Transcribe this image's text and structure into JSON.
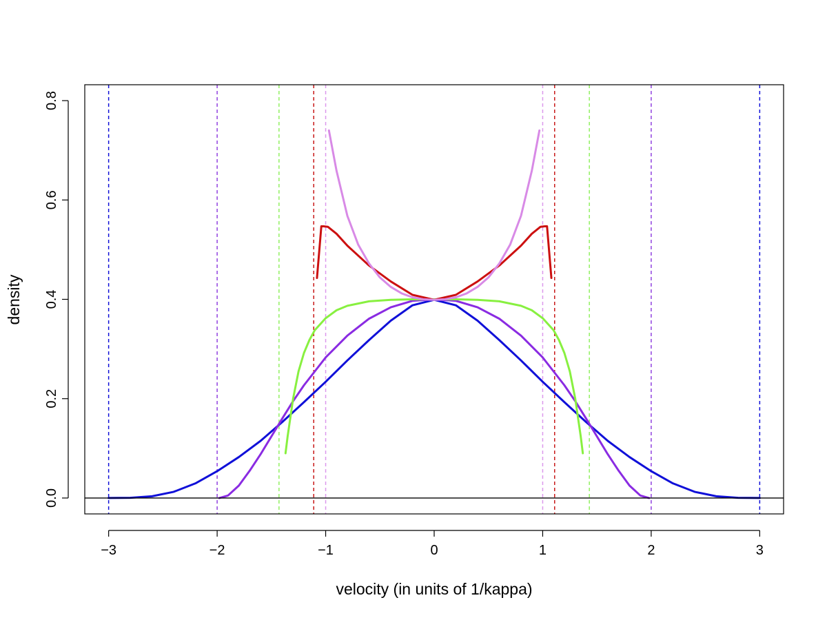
{
  "chart_data": {
    "type": "line",
    "xlabel": "velocity (in units of 1/kappa)",
    "ylabel": "density",
    "xlim": [
      -3.22,
      3.22
    ],
    "ylim": [
      -0.032,
      0.832
    ],
    "x_ticks": [
      -3,
      -2,
      -1,
      0,
      1,
      2,
      3
    ],
    "x_tick_labels": [
      "−3",
      "−2",
      "−1",
      "0",
      "1",
      "2",
      "3"
    ],
    "y_ticks": [
      0.0,
      0.2,
      0.4,
      0.6,
      0.8
    ],
    "y_tick_labels": [
      "0.0",
      "0.2",
      "0.4",
      "0.6",
      "0.8"
    ],
    "grid": false,
    "horizontal_lines": [
      0
    ],
    "vertical_lines": [
      {
        "x": -3.0,
        "color": "#1010d8"
      },
      {
        "x": 3.0,
        "color": "#1010d8"
      },
      {
        "x": -2.0,
        "color": "#9040e0"
      },
      {
        "x": 2.0,
        "color": "#9040e0"
      },
      {
        "x": -1.43,
        "color": "#90f060"
      },
      {
        "x": 1.43,
        "color": "#90f060"
      },
      {
        "x": -1.11,
        "color": "#c81818"
      },
      {
        "x": 1.11,
        "color": "#c81818"
      },
      {
        "x": -1.0,
        "color": "#dc98ec"
      },
      {
        "x": 1.0,
        "color": "#dc98ec"
      }
    ],
    "series": [
      {
        "color": "#1010d8",
        "x": [
          -3.0,
          -2.8,
          -2.6,
          -2.4,
          -2.2,
          -2.0,
          -1.8,
          -1.6,
          -1.4,
          -1.2,
          -1.0,
          -0.8,
          -0.6,
          -0.4,
          -0.2,
          0.0,
          0.2,
          0.4,
          0.6,
          0.8,
          1.0,
          1.2,
          1.4,
          1.6,
          1.8,
          2.0,
          2.2,
          2.4,
          2.6,
          2.8,
          3.0
        ],
        "y": [
          0.0,
          0.0004,
          0.0035,
          0.0125,
          0.0295,
          0.054,
          0.0825,
          0.115,
          0.153,
          0.193,
          0.234,
          0.277,
          0.318,
          0.357,
          0.388,
          0.399,
          0.388,
          0.357,
          0.318,
          0.277,
          0.234,
          0.193,
          0.153,
          0.115,
          0.0825,
          0.054,
          0.0295,
          0.0125,
          0.0035,
          0.0004,
          0.0
        ]
      },
      {
        "color": "#8a2be2",
        "x": [
          -1.98,
          -1.9,
          -1.8,
          -1.7,
          -1.6,
          -1.5,
          -1.4,
          -1.3,
          -1.2,
          -1.0,
          -0.8,
          -0.6,
          -0.4,
          -0.2,
          0.0,
          0.2,
          0.4,
          0.6,
          0.8,
          1.0,
          1.2,
          1.3,
          1.4,
          1.5,
          1.6,
          1.7,
          1.8,
          1.9,
          1.98
        ],
        "y": [
          0.0,
          0.005,
          0.025,
          0.055,
          0.088,
          0.124,
          0.16,
          0.195,
          0.227,
          0.283,
          0.327,
          0.361,
          0.384,
          0.397,
          0.4,
          0.397,
          0.384,
          0.361,
          0.327,
          0.283,
          0.227,
          0.195,
          0.16,
          0.124,
          0.088,
          0.055,
          0.025,
          0.005,
          0.0
        ]
      },
      {
        "color": "#88f040",
        "x": [
          -1.37,
          -1.35,
          -1.3,
          -1.25,
          -1.2,
          -1.15,
          -1.1,
          -1.0,
          -0.9,
          -0.8,
          -0.6,
          -0.4,
          -0.2,
          0.0,
          0.2,
          0.4,
          0.6,
          0.8,
          0.9,
          1.0,
          1.1,
          1.15,
          1.2,
          1.25,
          1.3,
          1.35,
          1.37
        ],
        "y": [
          0.09,
          0.125,
          0.2,
          0.255,
          0.292,
          0.318,
          0.338,
          0.362,
          0.378,
          0.387,
          0.396,
          0.399,
          0.4,
          0.4,
          0.4,
          0.399,
          0.396,
          0.387,
          0.378,
          0.362,
          0.338,
          0.318,
          0.292,
          0.255,
          0.2,
          0.125,
          0.09
        ]
      },
      {
        "color": "#cc1010",
        "x": [
          -1.08,
          -1.04,
          -1.02,
          -0.98,
          -0.9,
          -0.8,
          -0.6,
          -0.4,
          -0.2,
          0.0,
          0.2,
          0.4,
          0.6,
          0.8,
          0.9,
          0.98,
          1.02,
          1.04,
          1.08
        ],
        "y": [
          0.443,
          0.547,
          0.547,
          0.546,
          0.532,
          0.508,
          0.468,
          0.436,
          0.409,
          0.399,
          0.409,
          0.436,
          0.468,
          0.508,
          0.532,
          0.546,
          0.547,
          0.547,
          0.443
        ]
      },
      {
        "color": "#d88ae6",
        "x": [
          -0.97,
          -0.9,
          -0.8,
          -0.7,
          -0.6,
          -0.5,
          -0.4,
          -0.3,
          -0.2,
          -0.1,
          0.0,
          0.1,
          0.2,
          0.3,
          0.4,
          0.5,
          0.6,
          0.7,
          0.8,
          0.9,
          0.97
        ],
        "y": [
          0.74,
          0.659,
          0.568,
          0.51,
          0.472,
          0.444,
          0.425,
          0.412,
          0.404,
          0.4,
          0.399,
          0.4,
          0.404,
          0.412,
          0.425,
          0.444,
          0.472,
          0.51,
          0.568,
          0.659,
          0.74
        ]
      }
    ]
  }
}
